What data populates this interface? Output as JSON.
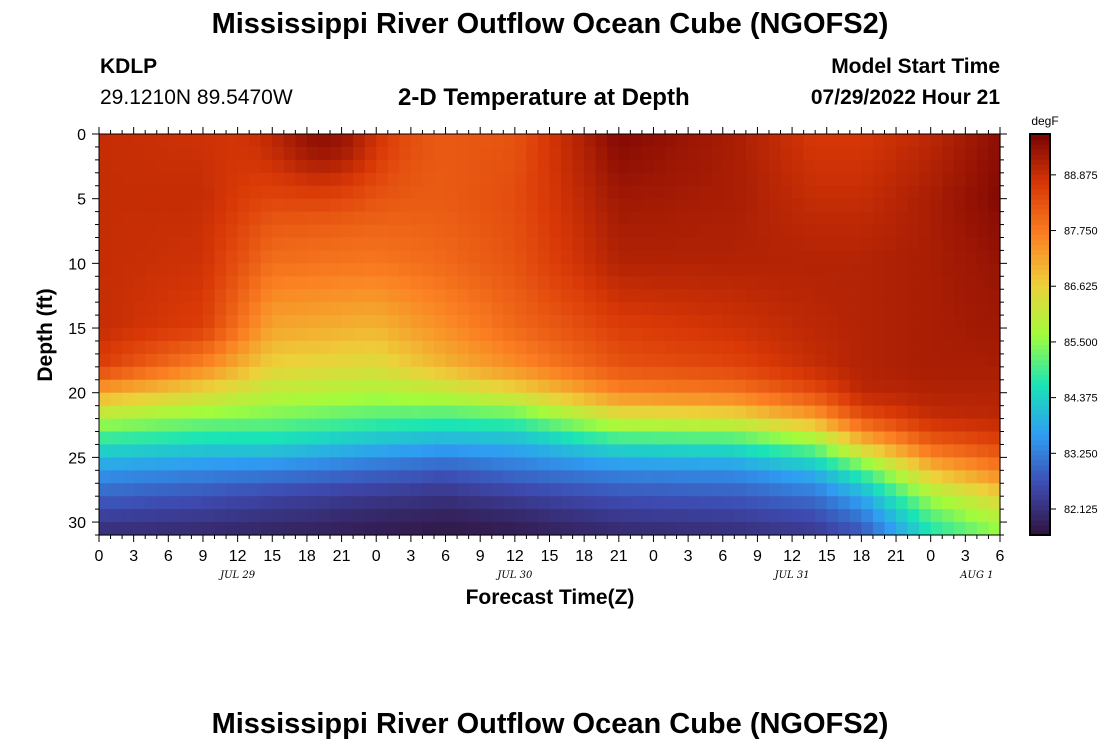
{
  "page": {
    "title": "Mississippi River Outflow Ocean Cube (NGOFS2)",
    "title_bottom": "Mississippi River Outflow Ocean Cube (NGOFS2)"
  },
  "header": {
    "station_id": "KDLP",
    "station_coords": "29.1210N  89.5470W",
    "subtitle": "2-D Temperature at Depth",
    "model_start_label": "Model Start Time",
    "model_start_value": "07/29/2022 Hour 21"
  },
  "colors": {
    "scale": [
      "#30123b",
      "#3e4ab0",
      "#2f9cf2",
      "#1ae4b6",
      "#a2fc3c",
      "#edd03a",
      "#fb8022",
      "#d93806",
      "#7a0403"
    ]
  },
  "chart_data": {
    "type": "heatmap",
    "title": "2-D Temperature at Depth",
    "xlabel": "Forecast Time(Z)",
    "ylabel": "Depth (ft)",
    "x_tick_labels": [
      "0",
      "3",
      "6",
      "9",
      "12",
      "15",
      "18",
      "21",
      "0",
      "3",
      "6",
      "9",
      "12",
      "15",
      "18",
      "21",
      "0",
      "3",
      "6",
      "9",
      "12",
      "15",
      "18",
      "21",
      "0",
      "3",
      "6"
    ],
    "date_labels": [
      {
        "label": "JUL 29",
        "hour_index": 12
      },
      {
        "label": "JUL 30",
        "hour_index": 36
      },
      {
        "label": "JUL 31",
        "hour_index": 60
      },
      {
        "label": "AUG 1",
        "hour_index": 76
      }
    ],
    "x_range_hours": [
      0,
      78
    ],
    "y_range_ft": [
      0,
      31
    ],
    "y_ticks": [
      0,
      5,
      10,
      15,
      20,
      25,
      30
    ],
    "colorbar": {
      "unit": "degF",
      "min": 81.6,
      "max": 89.7,
      "ticks": [
        "88.875",
        "87.750",
        "86.625",
        "85.500",
        "84.375",
        "83.250",
        "82.125"
      ]
    },
    "depth_profiles_degF": {
      "depths_ft": [
        0,
        5,
        10,
        15,
        18,
        20,
        22,
        24,
        26,
        28,
        30,
        31
      ],
      "profiles": [
        {
          "hour": 0,
          "temps": [
            88.9,
            88.9,
            88.9,
            88.9,
            88.6,
            87.2,
            85.8,
            84.6,
            83.6,
            82.9,
            82.3,
            82.1
          ]
        },
        {
          "hour": 9,
          "temps": [
            88.8,
            88.9,
            88.8,
            88.6,
            87.6,
            86.5,
            85.4,
            84.4,
            83.4,
            82.7,
            82.2,
            82.0
          ]
        },
        {
          "hour": 15,
          "temps": [
            88.6,
            88.4,
            87.9,
            87.2,
            86.6,
            86.0,
            85.3,
            84.4,
            83.3,
            82.5,
            82.1,
            81.9
          ]
        },
        {
          "hour": 24,
          "temps": [
            88.3,
            88.2,
            87.8,
            87.0,
            86.4,
            85.8,
            85.0,
            84.0,
            83.0,
            82.3,
            81.9,
            81.8
          ]
        },
        {
          "hour": 30,
          "temps": [
            88.2,
            88.2,
            88.0,
            87.5,
            87.0,
            86.0,
            84.9,
            83.8,
            82.8,
            82.2,
            81.8,
            81.7
          ]
        },
        {
          "hour": 36,
          "temps": [
            88.3,
            88.4,
            88.3,
            88.0,
            87.5,
            86.5,
            85.0,
            83.9,
            83.1,
            82.4,
            81.9,
            81.8
          ]
        },
        {
          "hour": 45,
          "temps": [
            89.6,
            89.3,
            89.1,
            88.6,
            88.3,
            87.6,
            86.2,
            84.6,
            83.4,
            82.7,
            82.2,
            82.0
          ]
        },
        {
          "hour": 55,
          "temps": [
            89.2,
            89.2,
            89.1,
            88.8,
            88.5,
            87.8,
            86.4,
            84.7,
            83.5,
            82.8,
            82.3,
            82.1
          ]
        },
        {
          "hour": 62,
          "temps": [
            88.7,
            88.9,
            89.1,
            89.0,
            88.9,
            88.4,
            87.2,
            85.4,
            84.0,
            83.1,
            82.5,
            82.3
          ]
        },
        {
          "hour": 66,
          "temps": [
            88.7,
            88.9,
            89.1,
            89.1,
            89.1,
            89.0,
            88.3,
            86.8,
            85.0,
            83.8,
            83.0,
            82.7
          ]
        },
        {
          "hour": 72,
          "temps": [
            89.0,
            89.2,
            89.2,
            89.2,
            89.2,
            89.1,
            88.9,
            88.1,
            86.9,
            85.7,
            84.9,
            84.6
          ]
        },
        {
          "hour": 78,
          "temps": [
            89.5,
            89.6,
            89.4,
            89.3,
            89.2,
            89.1,
            89.0,
            88.5,
            87.7,
            86.6,
            85.8,
            85.5
          ]
        }
      ],
      "hot_spot": {
        "hour": 19.5,
        "depth_ft": 0,
        "temp": 89.7
      }
    }
  }
}
